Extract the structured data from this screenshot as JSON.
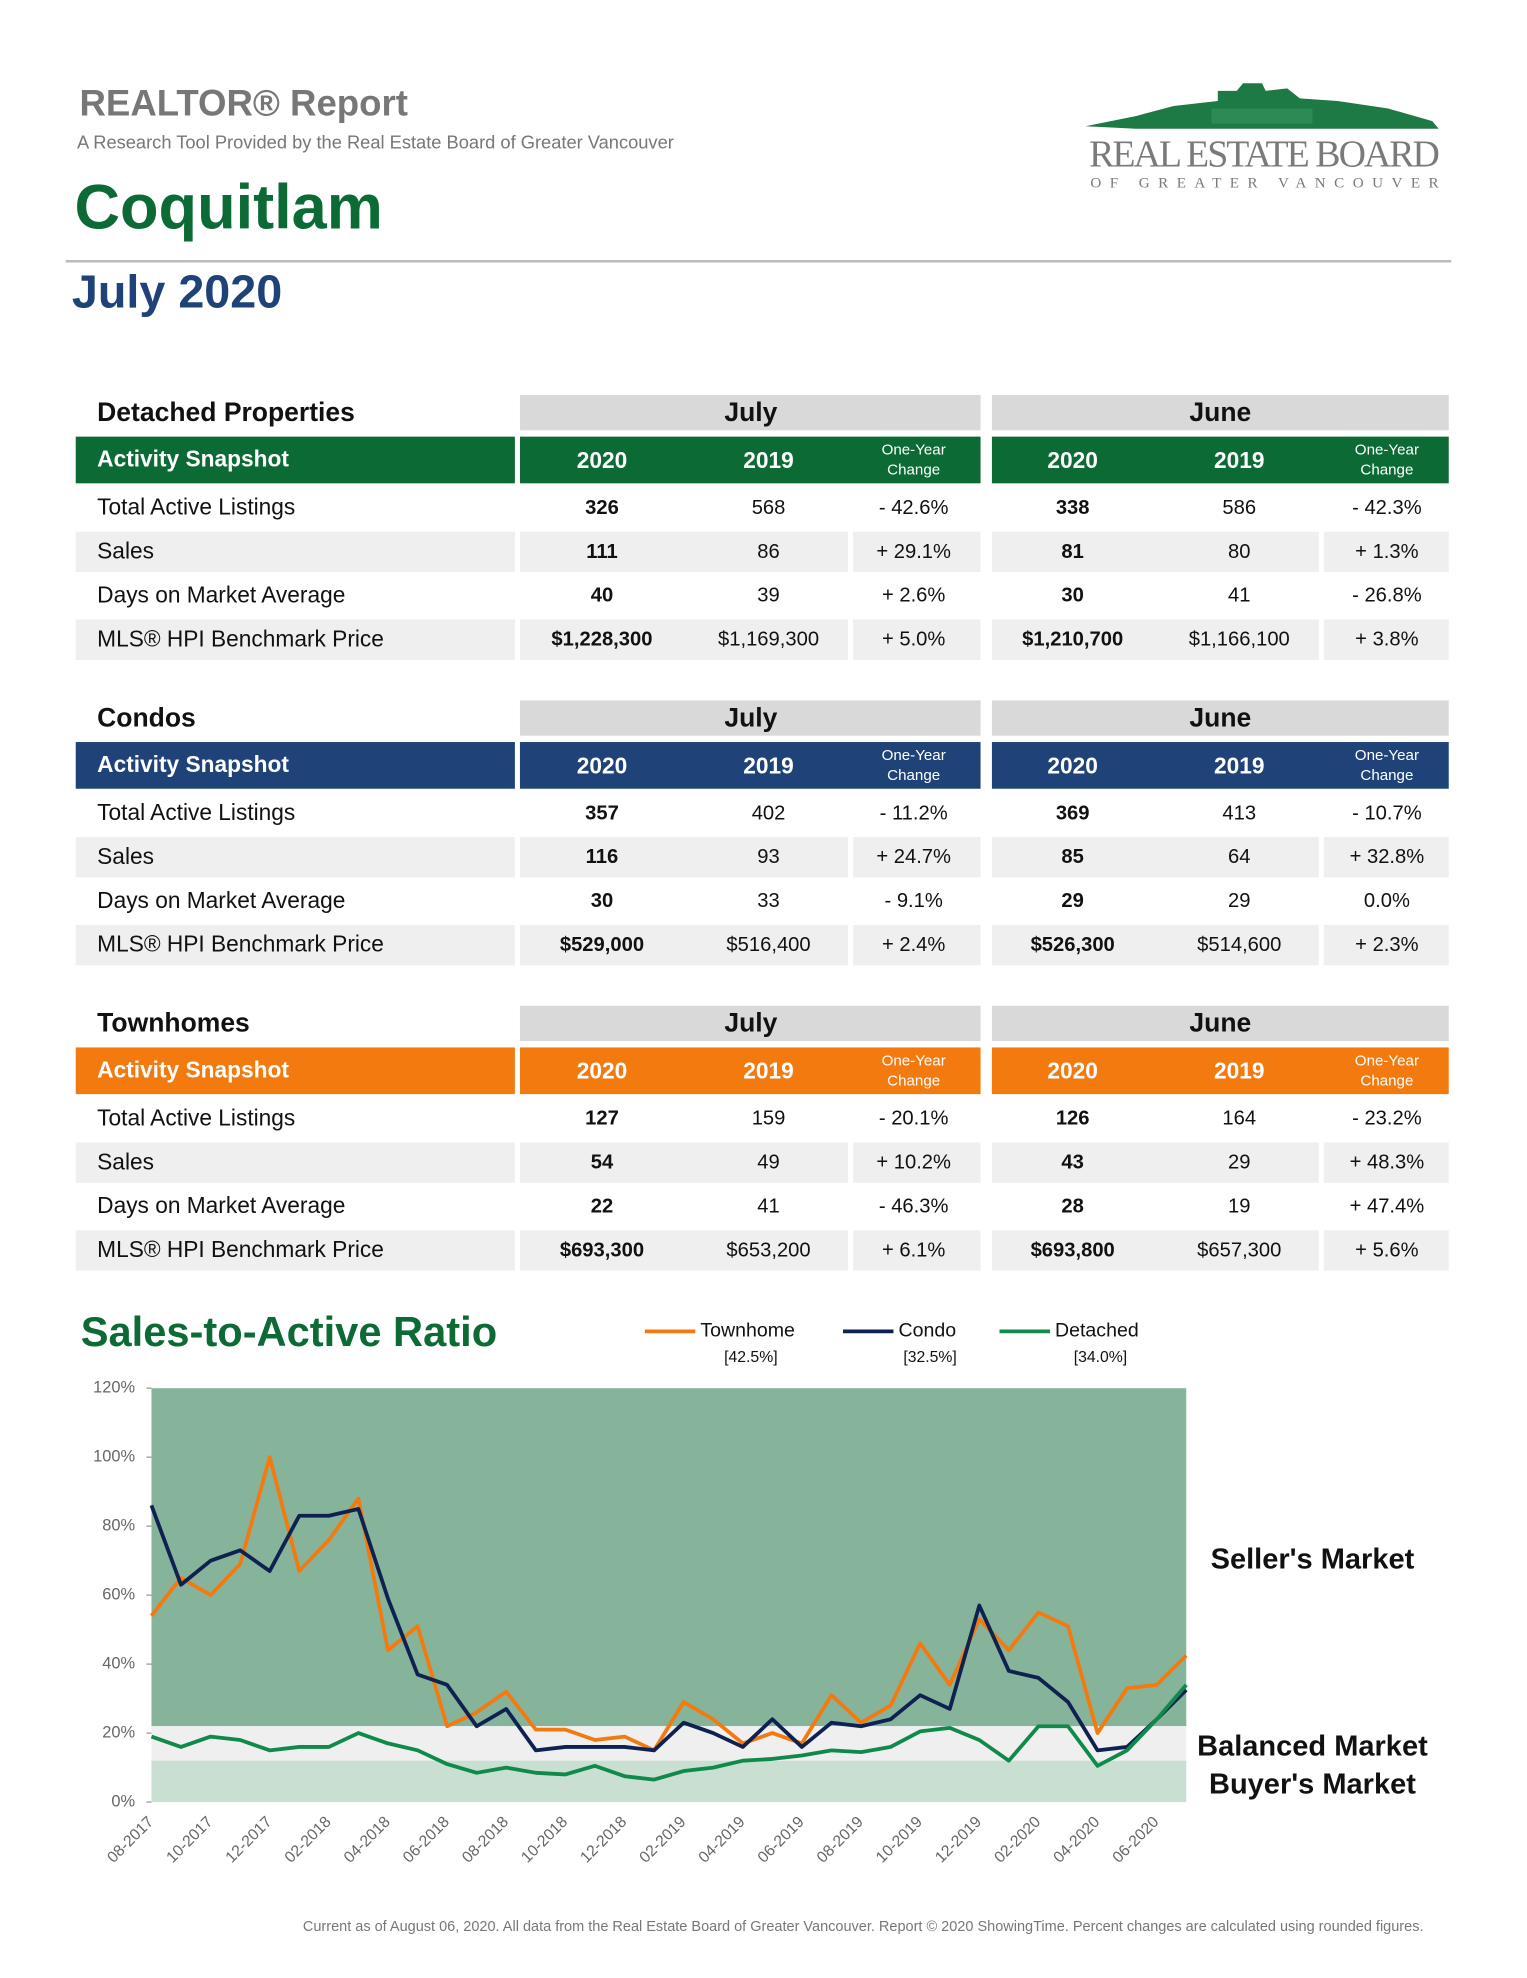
{
  "header": {
    "title": "REALTOR® Report",
    "subtitle": "A Research Tool Provided by the Real Estate Board of Greater Vancouver",
    "area": "Coquitlam",
    "period": "July 2020",
    "logo": {
      "name": "REAL ESTATE BOARD",
      "sub": "OF GREATER VANCOUVER"
    }
  },
  "tables": [
    {
      "title": "Detached Properties",
      "color": "#0c6a35",
      "snapshot": "Activity Snapshot",
      "periods": [
        "July",
        "June"
      ],
      "columns": [
        "2020",
        "2019",
        [
          "One-Year",
          "Change"
        ]
      ],
      "rows": [
        [
          "Total Active Listings",
          "326",
          "568",
          "- 42.6%",
          "338",
          "586",
          "- 42.3%"
        ],
        [
          "Sales",
          "111",
          "86",
          "+ 29.1%",
          "81",
          "80",
          "+ 1.3%"
        ],
        [
          "Days on Market Average",
          "40",
          "39",
          "+ 2.6%",
          "30",
          "41",
          "- 26.8%"
        ],
        [
          "MLS® HPI Benchmark Price",
          "$1,228,300",
          "$1,169,300",
          "+ 5.0%",
          "$1,210,700",
          "$1,166,100",
          "+ 3.8%"
        ]
      ]
    },
    {
      "title": "Condos",
      "color": "#1f4279",
      "snapshot": "Activity Snapshot",
      "periods": [
        "July",
        "June"
      ],
      "columns": [
        "2020",
        "2019",
        [
          "One-Year",
          "Change"
        ]
      ],
      "rows": [
        [
          "Total Active Listings",
          "357",
          "402",
          "- 11.2%",
          "369",
          "413",
          "- 10.7%"
        ],
        [
          "Sales",
          "116",
          "93",
          "+ 24.7%",
          "85",
          "64",
          "+ 32.8%"
        ],
        [
          "Days on Market Average",
          "30",
          "33",
          "- 9.1%",
          "29",
          "29",
          "0.0%"
        ],
        [
          "MLS® HPI Benchmark Price",
          "$529,000",
          "$516,400",
          "+ 2.4%",
          "$526,300",
          "$514,600",
          "+ 2.3%"
        ]
      ]
    },
    {
      "title": "Townhomes",
      "color": "#f27a0f",
      "snapshot": "Activity Snapshot",
      "periods": [
        "July",
        "June"
      ],
      "columns": [
        "2020",
        "2019",
        [
          "One-Year",
          "Change"
        ]
      ],
      "rows": [
        [
          "Total Active Listings",
          "127",
          "159",
          "- 20.1%",
          "126",
          "164",
          "- 23.2%"
        ],
        [
          "Sales",
          "54",
          "49",
          "+ 10.2%",
          "43",
          "29",
          "+ 48.3%"
        ],
        [
          "Days on Market Average",
          "22",
          "41",
          "- 46.3%",
          "28",
          "19",
          "+ 47.4%"
        ],
        [
          "MLS® HPI Benchmark Price",
          "$693,300",
          "$653,200",
          "+ 6.1%",
          "$693,800",
          "$657,300",
          "+ 5.6%"
        ]
      ]
    }
  ],
  "chart_data": {
    "type": "line",
    "title": "Sales-to-Active Ratio",
    "categories": [
      "08-2017",
      null,
      "10-2017",
      null,
      "12-2017",
      null,
      "02-2018",
      null,
      "04-2018",
      null,
      "06-2018",
      null,
      "08-2018",
      null,
      "10-2018",
      null,
      "12-2018",
      null,
      "02-2019",
      null,
      "04-2019",
      null,
      "06-2019",
      null,
      "08-2019",
      null,
      "10-2019",
      null,
      "12-2019",
      null,
      "02-2020",
      null,
      "04-2020",
      null,
      "06-2020",
      null
    ],
    "ylim": [
      0,
      120
    ],
    "yticks": [
      {
        "value": 0,
        "label": "0%"
      },
      {
        "value": 20,
        "label": "20%"
      },
      {
        "value": 40,
        "label": "40%"
      },
      {
        "value": 60,
        "label": "60%"
      },
      {
        "value": 80,
        "label": "80%"
      },
      {
        "value": 100,
        "label": "100%"
      },
      {
        "value": 120,
        "label": "120%"
      }
    ],
    "zones": [
      {
        "label": "Seller's Market",
        "from": 22,
        "to": 120,
        "color": "#86b49b"
      },
      {
        "label": "Balanced Market",
        "from": 12,
        "to": 22,
        "color": "#efefef"
      },
      {
        "label": "Buyer's Market",
        "from": 0,
        "to": 12,
        "color": "#c8dfd1"
      }
    ],
    "series": [
      {
        "name": "Townhome",
        "color": "#f27a0f",
        "latest_label": "[42.5%]",
        "values": [
          54,
          65,
          60,
          69,
          100,
          67,
          76,
          88,
          44,
          51,
          22,
          26,
          32,
          21,
          21,
          18,
          19,
          15,
          29,
          24,
          17,
          20,
          17,
          31,
          23,
          28,
          46,
          34,
          53,
          44,
          55,
          51,
          20,
          33,
          34,
          42.5
        ]
      },
      {
        "name": "Condo",
        "color": "#0f2150",
        "latest_label": "[32.5%]",
        "values": [
          86,
          63,
          70,
          73,
          67,
          83,
          83,
          85,
          59,
          37,
          34,
          22,
          27,
          15,
          16,
          16,
          16,
          15,
          23,
          20,
          16,
          24,
          16,
          23,
          22,
          24,
          31,
          27,
          57,
          38,
          36,
          29,
          15,
          16,
          24,
          32.5
        ]
      },
      {
        "name": "Detached",
        "color": "#0f8a4a",
        "latest_label": "[34.0%]",
        "values": [
          19,
          16,
          19,
          18,
          15,
          16,
          16,
          20,
          17,
          15,
          11,
          8.5,
          10,
          8.5,
          8,
          10.5,
          7.5,
          6.5,
          9,
          10,
          12,
          12.5,
          13.5,
          15,
          14.5,
          16,
          20.5,
          21.5,
          18,
          12,
          22,
          22,
          10.5,
          15,
          24,
          34
        ]
      }
    ]
  },
  "footer": "Current as of August 06, 2020. All data from the Real Estate Board of Greater Vancouver. Report © 2020 ShowingTime. Percent changes are calculated using rounded figures."
}
